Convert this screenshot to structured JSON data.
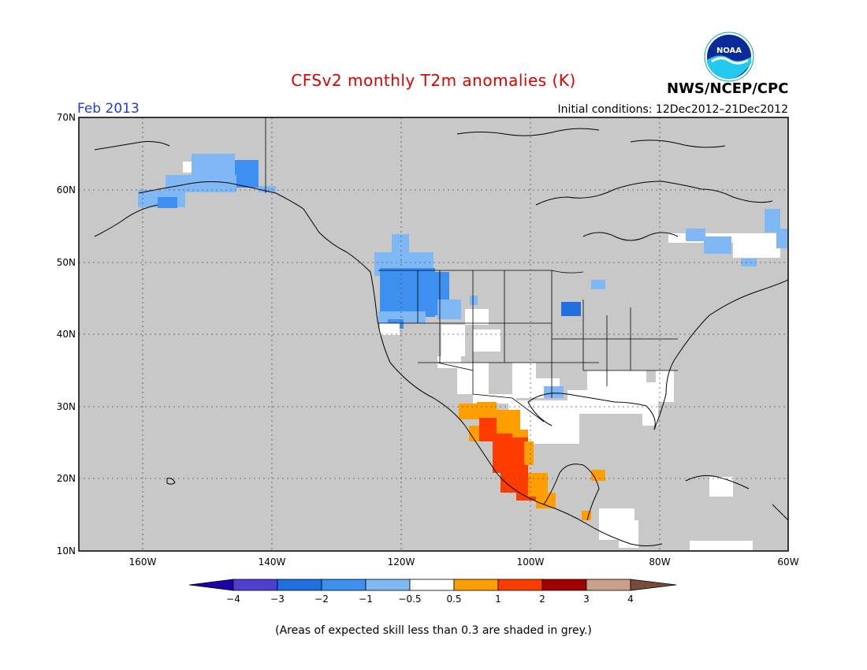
{
  "header": {
    "title": "CFSv2 monthly T2m anomalies (K)",
    "agency": "NWS/NCEP/CPC",
    "logo_text": "NOAA",
    "month": "Feb 2013",
    "initial_conditions": "Initial conditions: 12Dec2012–21Dec2012"
  },
  "map": {
    "lat_range": [
      10,
      70
    ],
    "lon_range": [
      -170,
      -60
    ],
    "lat_labels": [
      "10N",
      "20N",
      "30N",
      "40N",
      "50N",
      "60N",
      "70N"
    ],
    "lon_labels": [
      "160W",
      "140W",
      "120W",
      "100W",
      "80W",
      "60W"
    ],
    "regions": [
      {
        "anomaly": "-1 to -0.5",
        "area": "Alaska"
      },
      {
        "anomaly": "-2 to -1",
        "area": "Pacific Northwest"
      },
      {
        "anomaly": "-2 to -1",
        "area": "Upper Midwest"
      },
      {
        "anomaly": "-1 to -0.5",
        "area": "Eastern Canada"
      },
      {
        "anomaly": "-0.5 to 0.5",
        "area": "Southeast US"
      },
      {
        "anomaly": "0.5 to 1",
        "area": "Northwest Mexico"
      },
      {
        "anomaly": "1 to 2",
        "area": "Western Mexico"
      }
    ]
  },
  "colorbar": {
    "ticks": [
      "−4",
      "−3",
      "−2",
      "−1",
      "−0.5",
      "0.5",
      "1",
      "2",
      "3",
      "4"
    ],
    "colors": [
      "#1c00a8",
      "#4d3fcf",
      "#1f6fde",
      "#3d8ff0",
      "#80b8f5",
      "#ffffff",
      "#ff9e00",
      "#ff3c00",
      "#a00000",
      "#c8a08c",
      "#7a4a3a"
    ]
  },
  "footnote": "(Areas of expected skill less than 0.3 are shaded in grey.)",
  "colors": {
    "title": "#e00000",
    "month": "#1a3cd8",
    "land_low_skill": "#c8c8c8"
  }
}
